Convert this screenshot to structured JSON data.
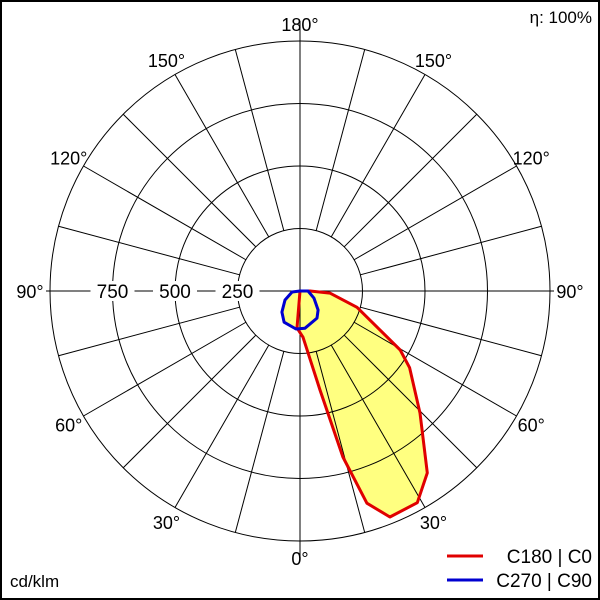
{
  "chart_data": {
    "type": "polar",
    "title": "",
    "efficiency_label": "η: 100%",
    "unit_label": "cd/klm",
    "radial_ticks": [
      250,
      500,
      750
    ],
    "radial_max": 1000,
    "angle_labels": [
      "180°",
      "150°",
      "150°",
      "120°",
      "120°",
      "90°",
      "90°",
      "60°",
      "60°",
      "30°",
      "30°",
      "0°"
    ],
    "angle_label_values": [
      180,
      -150,
      150,
      -120,
      120,
      -90,
      90,
      -60,
      60,
      -30,
      30,
      0
    ],
    "grid_step_deg": 15,
    "grid": true,
    "legend_placement": "bottom-right",
    "fill_color": "#ffff80",
    "series": [
      {
        "name": "C180 | C0",
        "color": "#e00000",
        "points": [
          [
            -90,
            0
          ],
          [
            -4.6,
            148
          ],
          [
            3.7,
            185
          ],
          [
            11.4,
            404
          ],
          [
            14.5,
            686
          ],
          [
            17.5,
            890
          ],
          [
            21.7,
            973
          ],
          [
            29,
            968
          ],
          [
            35,
            888
          ],
          [
            44.5,
            685
          ],
          [
            55,
            535
          ],
          [
            59.5,
            465
          ],
          [
            74,
            237
          ],
          [
            86,
            120
          ],
          [
            90,
            40
          ],
          [
            90,
            0
          ]
        ]
      },
      {
        "name": "C270 | C90",
        "color": "#0000d0",
        "points": [
          [
            -180,
            0
          ],
          [
            -83,
            32
          ],
          [
            -59,
            70
          ],
          [
            -40.6,
            111
          ],
          [
            -27,
            140
          ],
          [
            -6,
            153
          ],
          [
            7.7,
            150
          ],
          [
            32,
            128
          ],
          [
            43.5,
            105
          ],
          [
            63,
            63
          ],
          [
            90,
            32
          ],
          [
            180,
            0
          ]
        ]
      }
    ]
  }
}
